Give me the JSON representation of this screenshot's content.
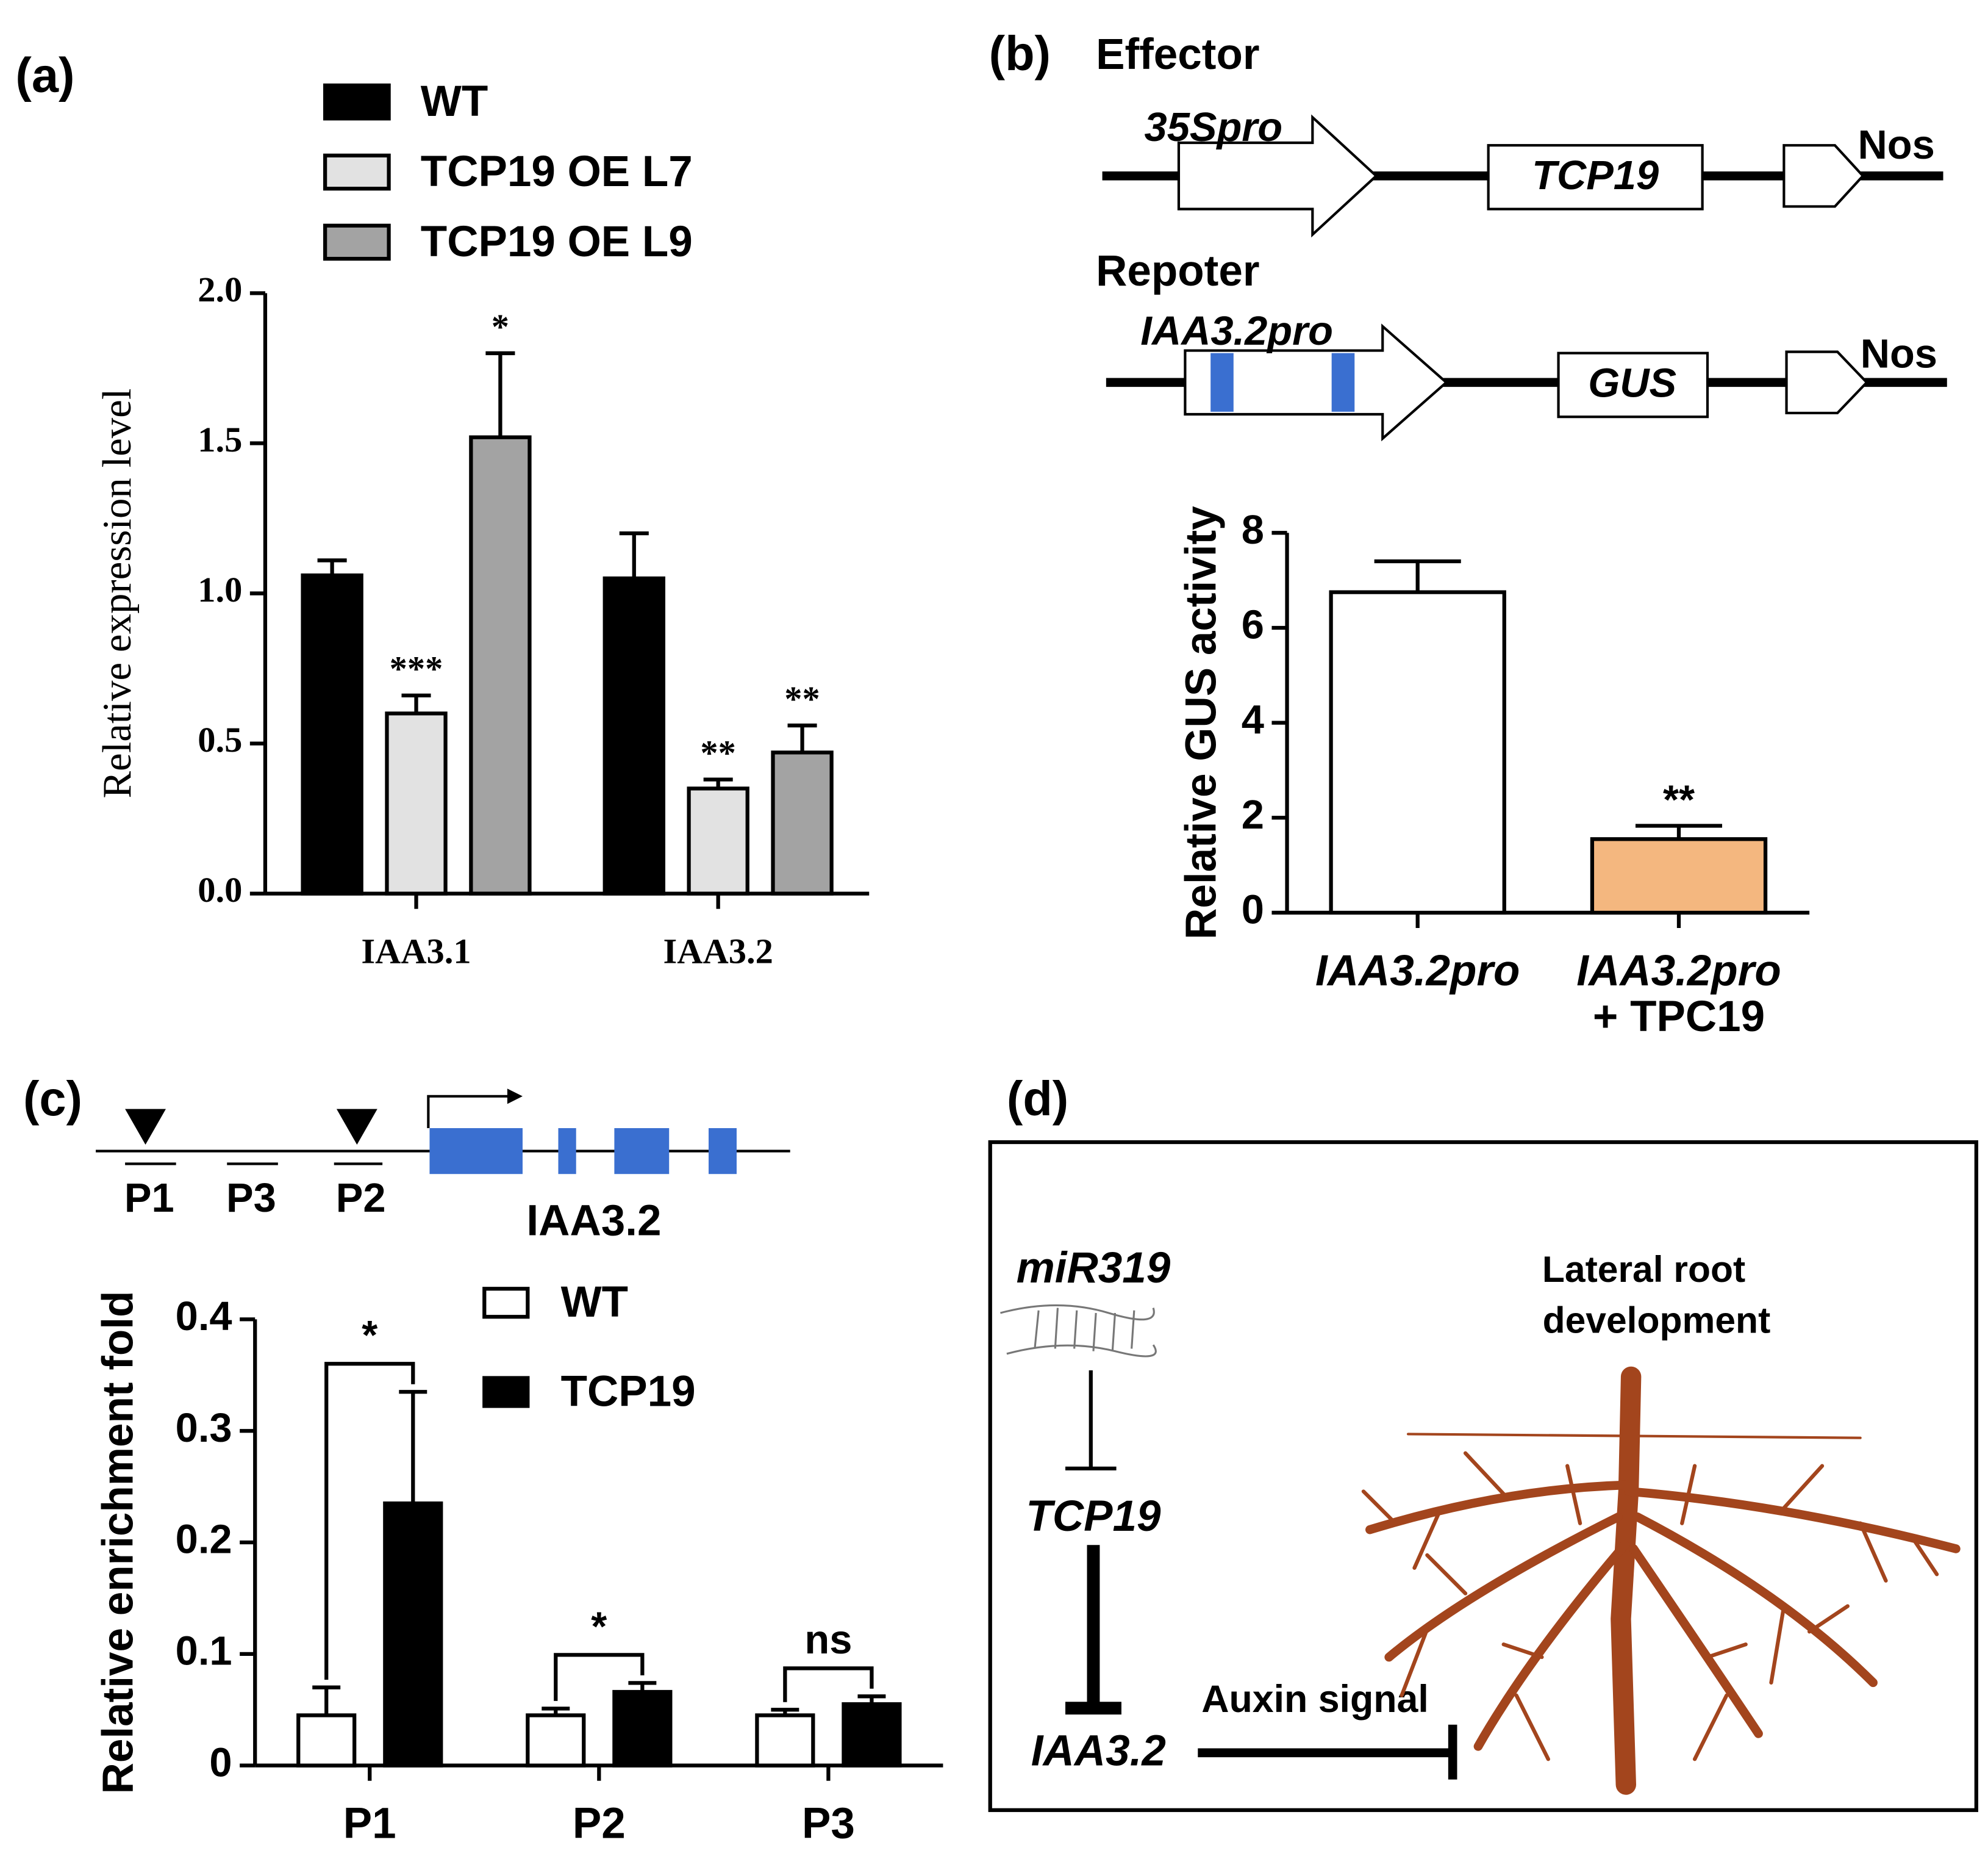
{
  "panel_labels": [
    "(a)",
    "(b)",
    "(c)",
    "(d)"
  ],
  "effector": {
    "title": "Effector",
    "promoter": "35Spro",
    "gene": "TCP19",
    "terminator": "Nos"
  },
  "reporter": {
    "title": "Repoter",
    "promoter": "IAA3.2pro",
    "gene": "GUS",
    "terminator": "Nos"
  },
  "gene_model": {
    "probes": [
      "P1",
      "P3",
      "P2"
    ],
    "gene": "IAA3.2"
  },
  "model": {
    "mirna": "miR319",
    "tf": "TCP19",
    "target": "IAA3.2",
    "signal": "Auxin signal",
    "outcome": [
      "Lateral root",
      "development"
    ]
  },
  "chart_data": [
    {
      "type": "bar",
      "y_label": "Relative expression level",
      "categories": [
        "IAA3.1",
        "IAA3.2"
      ],
      "series": [
        {
          "name": "WT",
          "color": "#000000",
          "values": [
            1.06,
            1.05
          ],
          "errors": [
            0.05,
            0.15
          ],
          "annotations": [
            null,
            null
          ]
        },
        {
          "name": "TCP19 OE L7",
          "color": "#e2e2e2",
          "values": [
            0.6,
            0.35
          ],
          "errors": [
            0.06,
            0.03
          ],
          "annotations": [
            "***",
            "**"
          ]
        },
        {
          "name": "TCP19 OE L9",
          "color": "#a3a3a3",
          "values": [
            1.52,
            0.47
          ],
          "errors": [
            0.28,
            0.09
          ],
          "annotations": [
            "*",
            "**"
          ]
        }
      ],
      "ylim": [
        0,
        2
      ],
      "yticks": [
        {
          "value": 0,
          "label": "0.0"
        },
        0.5,
        {
          "value": 1,
          "label": "1.0"
        },
        1.5,
        {
          "value": 2,
          "label": "2.0"
        }
      ],
      "legend": "top-left"
    },
    {
      "type": "bar",
      "y_label": "Relative GUS activity",
      "categories": [
        [
          "IAA3.2pro"
        ],
        [
          "IAA3.2pro",
          "+ TPC19"
        ]
      ],
      "values": [
        6.75,
        1.55
      ],
      "errors": [
        0.65,
        0.28
      ],
      "colors": [
        "#ffffff",
        "#f4b77f"
      ],
      "annotations": [
        null,
        "**"
      ],
      "ylim": [
        0,
        8
      ],
      "yticks": [
        0,
        2,
        4,
        6,
        8
      ]
    },
    {
      "type": "bar",
      "y_label": "Relative enrichment fold",
      "categories": [
        "P1",
        "P2",
        "P3"
      ],
      "series": [
        {
          "name": "WT",
          "color": "#ffffff",
          "values": [
            0.045,
            0.045,
            0.045
          ],
          "errors": [
            0.025,
            0.006,
            0.005
          ]
        },
        {
          "name": "TCP19",
          "color": "#000000",
          "values": [
            0.235,
            0.066,
            0.055
          ],
          "errors": [
            0.1,
            0.008,
            0.007
          ]
        }
      ],
      "comparisons": [
        "*",
        "*",
        "ns"
      ],
      "ylim": [
        0,
        0.4
      ],
      "yticks": [
        0,
        0.1,
        0.2,
        0.3,
        0.4
      ],
      "legend": "top-right"
    }
  ]
}
